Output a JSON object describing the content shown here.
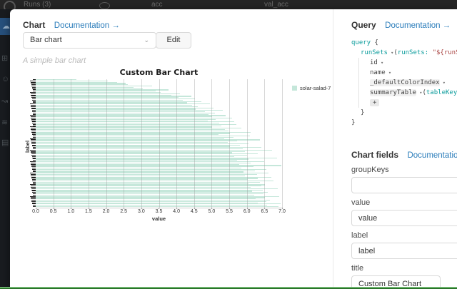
{
  "backdrop": {
    "runs_count_label": "Runs (3)",
    "column_acc": "acc",
    "column_val_acc": "val_acc",
    "sidebar_icons": [
      {
        "name": "cloud-icon",
        "glyph": "☁"
      },
      {
        "name": "panels-icon",
        "glyph": "⊞"
      },
      {
        "name": "smile-icon",
        "glyph": "☺"
      },
      {
        "name": "share-icon",
        "glyph": "↝"
      },
      {
        "name": "sliders-icon",
        "glyph": "≋"
      },
      {
        "name": "table-icon",
        "glyph": "▤"
      }
    ]
  },
  "chart_panel": {
    "title": "Chart",
    "doc_link": "Documentation →",
    "chart_type_selected": "Bar chart",
    "dropdown_caret": "⌄",
    "edit_button": "Edit",
    "description": "A simple bar chart"
  },
  "chart_data": {
    "type": "bar",
    "orientation": "horizontal",
    "title": "Custom Bar Chart",
    "xlabel": "value",
    "ylabel": "label",
    "xlim": [
      0,
      7
    ],
    "grid": true,
    "x_ticks": [
      "0.0",
      "0.5",
      "1.0",
      "1.5",
      "2.0",
      "2.5",
      "3.0",
      "3.5",
      "4.0",
      "4.5",
      "5.0",
      "5.5",
      "6.0",
      "6.5",
      "7.0"
    ],
    "legend_position": "right",
    "legend": [
      {
        "name": "solar-salad-7",
        "color": "#c5e7da"
      }
    ],
    "y_labels_note": "~100 overlapping y tick labels, illegible at this scale",
    "values": [
      1.15,
      2.05,
      2.32,
      2.55,
      2.62,
      3.3,
      2.78,
      3.05,
      3.78,
      3.4,
      3.55,
      4.1,
      3.85,
      4.42,
      4.05,
      4.52,
      4.18,
      4.7,
      4.3,
      4.95,
      4.45,
      4.6,
      5.05,
      4.55,
      5.32,
      4.8,
      5.1,
      4.92,
      5.4,
      5.02,
      5.58,
      5.12,
      4.88,
      5.65,
      5.22,
      5.7,
      5.28,
      5.02,
      5.85,
      5.38,
      5.48,
      6.1,
      5.52,
      5.2,
      6.08,
      5.62,
      5.35,
      6.38,
      5.72,
      5.45,
      6.05,
      5.8,
      5.52,
      6.42,
      5.88,
      6.72,
      5.95,
      5.58,
      6.3,
      6.0,
      5.65,
      6.85,
      6.05,
      5.72,
      6.5,
      6.1,
      5.78,
      6.98,
      6.18,
      5.85,
      6.55,
      6.22,
      5.9,
      6.62,
      6.28,
      5.95,
      6.7,
      6.32,
      6.02,
      6.75,
      6.38,
      6.05,
      6.52,
      6.42,
      6.1,
      6.88,
      6.45,
      6.15,
      6.6,
      6.48,
      6.2,
      6.92,
      6.52,
      6.25,
      6.65,
      6.55,
      6.3,
      6.95,
      6.58,
      6.9
    ]
  },
  "query_panel": {
    "title": "Query",
    "doc_link": "Documentation →",
    "code_lines": [
      {
        "indent": 0,
        "tokens": [
          {
            "t": "query",
            "s": "kw"
          },
          {
            "t": " {",
            "s": "pl"
          }
        ]
      },
      {
        "indent": 1,
        "tokens": [
          {
            "t": "runSets",
            "s": "kw"
          },
          {
            "t": " ▾",
            "s": "cr"
          },
          {
            "t": "(",
            "s": "pl"
          },
          {
            "t": "runSets:",
            "s": "kw"
          },
          {
            "t": " ",
            "s": "pl"
          },
          {
            "t": "\"${runSets}\"",
            "s": "str"
          },
          {
            "t": " ",
            "s": "pl"
          },
          {
            "t": "+",
            "s": "pill"
          }
        ]
      },
      {
        "indent": 2,
        "tokens": [
          {
            "t": "id",
            "s": "pl"
          },
          {
            "t": " ▾",
            "s": "cr"
          }
        ]
      },
      {
        "indent": 2,
        "tokens": [
          {
            "t": "name",
            "s": "pl"
          },
          {
            "t": " ▾",
            "s": "cr"
          }
        ]
      },
      {
        "indent": 2,
        "tokens": [
          {
            "t": "_defaultColorIndex",
            "s": "pl hl"
          },
          {
            "t": " ▾",
            "s": "cr"
          }
        ]
      },
      {
        "indent": 2,
        "tokens": [
          {
            "t": "summaryTable",
            "s": "pl hl"
          },
          {
            "t": " ▾",
            "s": "cr"
          },
          {
            "t": "(",
            "s": "pl"
          },
          {
            "t": "tableKey:",
            "s": "kw"
          },
          {
            "t": " ",
            "s": "pl"
          },
          {
            "t": "\"my_ba",
            "s": "str2 hl"
          }
        ]
      },
      {
        "indent": 2,
        "tokens": [
          {
            "t": "+",
            "s": "pill"
          }
        ]
      },
      {
        "indent": 1,
        "tokens": [
          {
            "t": "}",
            "s": "pl"
          }
        ]
      },
      {
        "indent": 0,
        "tokens": [
          {
            "t": "}",
            "s": "pl"
          }
        ]
      }
    ]
  },
  "fields_panel": {
    "title": "Chart fields",
    "doc_link": "Documentation →",
    "fields": [
      {
        "label": "groupKeys",
        "value": ""
      },
      {
        "label": "value",
        "value": "value"
      },
      {
        "label": "label",
        "value": "label"
      },
      {
        "label": "title",
        "value": "Custom Bar Chart"
      }
    ]
  },
  "colors": {
    "bar_fill": "#c5e7da",
    "link_blue": "#2a7cba",
    "code_teal": "#0b9c9c",
    "code_string_red": "#a94442",
    "code_string_purple": "#a626a4",
    "bottom_accent_green": "#3f9d3f",
    "sidebar_active_blue": "#27517e"
  }
}
